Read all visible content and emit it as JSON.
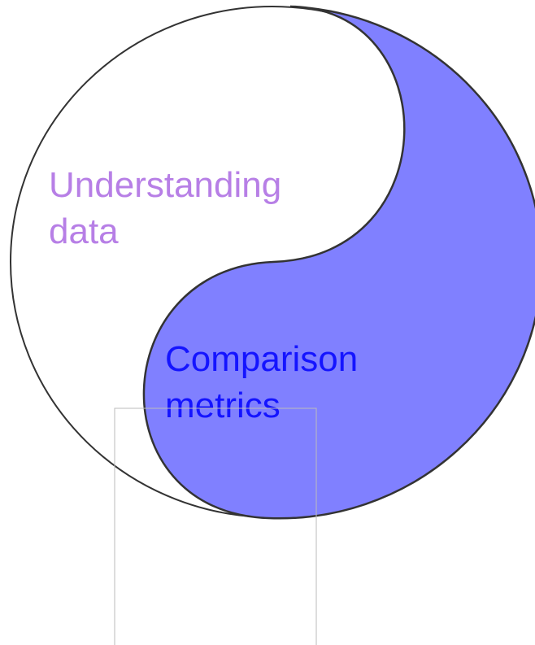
{
  "segments": [
    {
      "lines": [
        "Understanding",
        "data"
      ]
    },
    {
      "lines": [
        "Comparison",
        "metrics"
      ]
    }
  ]
}
